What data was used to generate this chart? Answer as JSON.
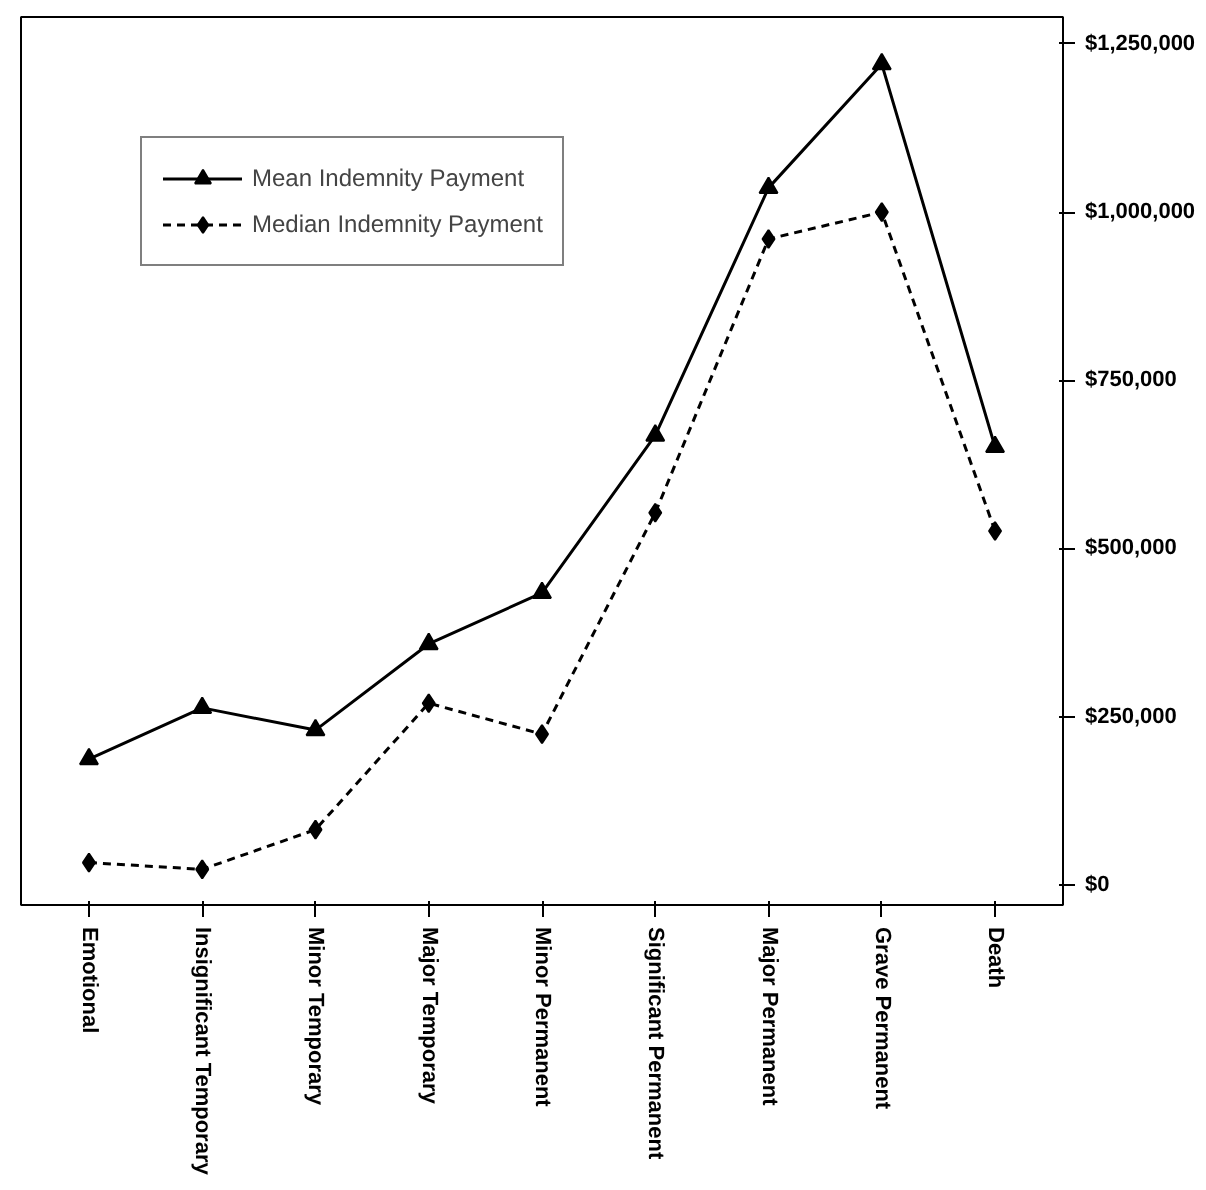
{
  "chart_data": {
    "type": "line",
    "categories": [
      "Emotional",
      "Insignificant Temporary",
      "Minor Temporary",
      "Major Temporary",
      "Minor Permanent",
      "Significant Permanent",
      "Major Permanent",
      "Grave Permanent",
      "Death"
    ],
    "series": [
      {
        "name": "Mean Indemnity Payment",
        "color": "#000000",
        "marker": "triangle",
        "line_style": "solid",
        "values": [
          187000,
          263000,
          230000,
          358000,
          434000,
          668000,
          1036000,
          1220000,
          651000
        ]
      },
      {
        "name": "Median Indemnity Payment",
        "color": "#000000",
        "marker": "diamond",
        "line_style": "dashed",
        "values": [
          33000,
          23000,
          82000,
          270000,
          224000,
          553000,
          960000,
          1000000,
          526000
        ]
      }
    ],
    "ylim": [
      -30000,
      1290000
    ],
    "yticks": [
      {
        "value": 0,
        "label": "$0"
      },
      {
        "value": 250000,
        "label": "$250,000"
      },
      {
        "value": 500000,
        "label": "$500,000"
      },
      {
        "value": 750000,
        "label": "$750,000"
      },
      {
        "value": 1000000,
        "label": "$1,000,000"
      },
      {
        "value": 1250000,
        "label": "$1,250,000"
      }
    ],
    "grid": false,
    "legend": "top left"
  }
}
